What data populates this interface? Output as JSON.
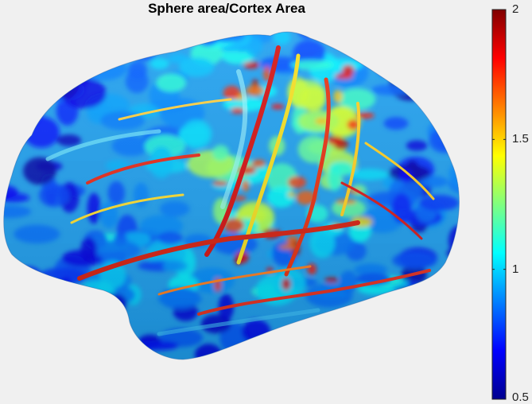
{
  "chart_data": {
    "type": "heatmap",
    "title": "Sphere area/Cortex Area",
    "colormap": "jet",
    "clim": [
      0.5,
      2
    ],
    "colorbar": {
      "placement": "right",
      "ticks": [
        0.5,
        1,
        1.5,
        2
      ],
      "tick_labels": [
        "0.5",
        "1",
        "1.5",
        "2"
      ]
    }
  }
}
